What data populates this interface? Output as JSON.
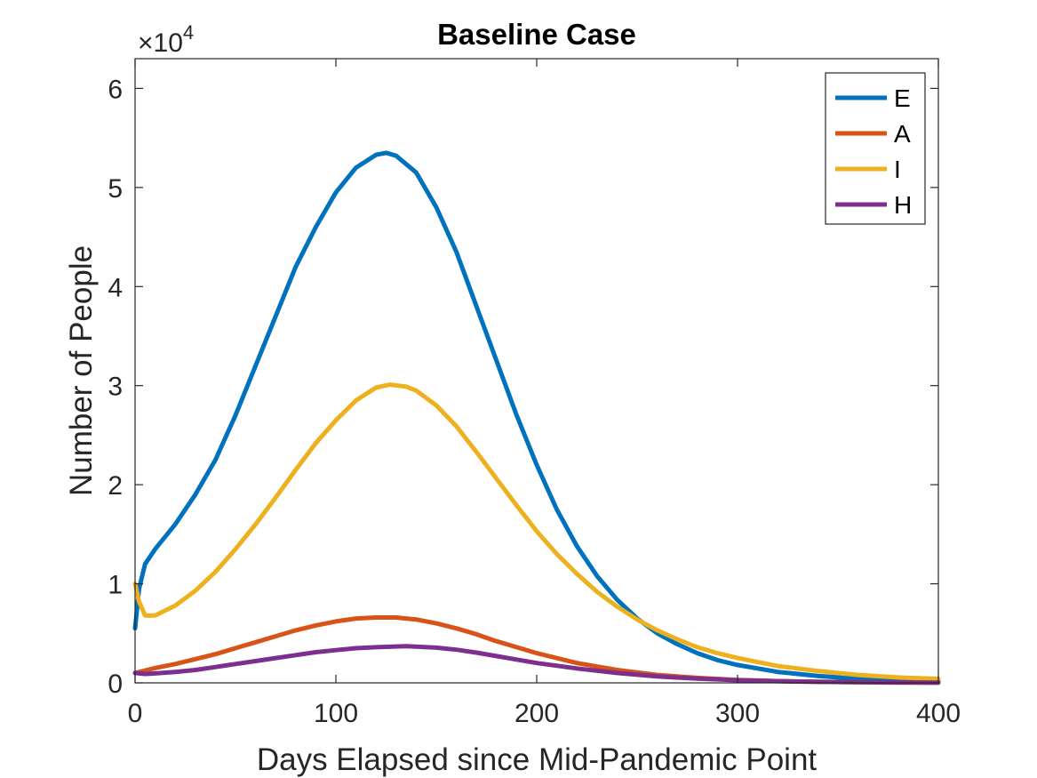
{
  "chart_data": {
    "type": "line",
    "title": "Baseline Case",
    "xlabel": "Days Elapsed since Mid-Pandemic Point",
    "ylabel": "Number of People",
    "y_multiplier": {
      "base": "×10",
      "exponent": "4"
    },
    "xlim": [
      0,
      400
    ],
    "ylim": [
      0,
      63000
    ],
    "x_ticks": [
      0,
      100,
      200,
      300,
      400
    ],
    "x_tick_labels": [
      "0",
      "100",
      "200",
      "300",
      "400"
    ],
    "y_ticks": [
      0,
      10000,
      20000,
      30000,
      40000,
      50000,
      60000
    ],
    "y_tick_labels": [
      "0",
      "1",
      "2",
      "3",
      "4",
      "5",
      "6"
    ],
    "grid": false,
    "box": true,
    "legend_position": "top-right",
    "series": [
      {
        "name": "E",
        "color": "#0072BD",
        "points": [
          [
            0,
            5500
          ],
          [
            2,
            9500
          ],
          [
            5,
            12000
          ],
          [
            10,
            13500
          ],
          [
            20,
            16000
          ],
          [
            30,
            19000
          ],
          [
            40,
            22500
          ],
          [
            50,
            27000
          ],
          [
            60,
            32000
          ],
          [
            70,
            37000
          ],
          [
            80,
            42000
          ],
          [
            90,
            46000
          ],
          [
            100,
            49500
          ],
          [
            110,
            52000
          ],
          [
            120,
            53300
          ],
          [
            125,
            53500
          ],
          [
            130,
            53200
          ],
          [
            140,
            51500
          ],
          [
            150,
            48000
          ],
          [
            160,
            43500
          ],
          [
            170,
            38000
          ],
          [
            180,
            32500
          ],
          [
            190,
            27000
          ],
          [
            200,
            22000
          ],
          [
            210,
            17500
          ],
          [
            220,
            13800
          ],
          [
            230,
            10800
          ],
          [
            240,
            8400
          ],
          [
            250,
            6500
          ],
          [
            260,
            5000
          ],
          [
            270,
            3900
          ],
          [
            280,
            3000
          ],
          [
            290,
            2300
          ],
          [
            300,
            1800
          ],
          [
            320,
            1100
          ],
          [
            340,
            700
          ],
          [
            360,
            400
          ],
          [
            380,
            250
          ],
          [
            400,
            150
          ]
        ]
      },
      {
        "name": "A",
        "color": "#D95319",
        "points": [
          [
            0,
            1000
          ],
          [
            10,
            1500
          ],
          [
            20,
            1900
          ],
          [
            30,
            2400
          ],
          [
            40,
            2900
          ],
          [
            50,
            3500
          ],
          [
            60,
            4100
          ],
          [
            70,
            4700
          ],
          [
            80,
            5300
          ],
          [
            90,
            5800
          ],
          [
            100,
            6200
          ],
          [
            110,
            6500
          ],
          [
            120,
            6600
          ],
          [
            130,
            6600
          ],
          [
            140,
            6400
          ],
          [
            150,
            6000
          ],
          [
            160,
            5500
          ],
          [
            170,
            4900
          ],
          [
            180,
            4200
          ],
          [
            190,
            3600
          ],
          [
            200,
            3000
          ],
          [
            220,
            2000
          ],
          [
            240,
            1300
          ],
          [
            260,
            800
          ],
          [
            280,
            500
          ],
          [
            300,
            300
          ],
          [
            320,
            180
          ],
          [
            340,
            100
          ],
          [
            360,
            60
          ],
          [
            380,
            30
          ],
          [
            400,
            20
          ]
        ]
      },
      {
        "name": "I",
        "color": "#EDB120",
        "points": [
          [
            0,
            10000
          ],
          [
            2,
            8200
          ],
          [
            5,
            6800
          ],
          [
            10,
            6800
          ],
          [
            20,
            7800
          ],
          [
            30,
            9300
          ],
          [
            40,
            11200
          ],
          [
            50,
            13500
          ],
          [
            60,
            16000
          ],
          [
            70,
            18700
          ],
          [
            80,
            21500
          ],
          [
            90,
            24200
          ],
          [
            100,
            26500
          ],
          [
            110,
            28500
          ],
          [
            120,
            29800
          ],
          [
            127,
            30100
          ],
          [
            135,
            29900
          ],
          [
            140,
            29500
          ],
          [
            150,
            28000
          ],
          [
            160,
            25900
          ],
          [
            170,
            23300
          ],
          [
            180,
            20600
          ],
          [
            190,
            17900
          ],
          [
            200,
            15300
          ],
          [
            210,
            13000
          ],
          [
            220,
            11000
          ],
          [
            230,
            9200
          ],
          [
            240,
            7700
          ],
          [
            250,
            6400
          ],
          [
            260,
            5300
          ],
          [
            270,
            4400
          ],
          [
            280,
            3600
          ],
          [
            290,
            3000
          ],
          [
            300,
            2500
          ],
          [
            320,
            1700
          ],
          [
            340,
            1200
          ],
          [
            360,
            800
          ],
          [
            380,
            550
          ],
          [
            400,
            400
          ]
        ]
      },
      {
        "name": "H",
        "color": "#7E2F8E",
        "points": [
          [
            0,
            1000
          ],
          [
            5,
            900
          ],
          [
            10,
            950
          ],
          [
            20,
            1100
          ],
          [
            30,
            1300
          ],
          [
            40,
            1600
          ],
          [
            50,
            1900
          ],
          [
            60,
            2200
          ],
          [
            70,
            2500
          ],
          [
            80,
            2800
          ],
          [
            90,
            3100
          ],
          [
            100,
            3300
          ],
          [
            110,
            3500
          ],
          [
            120,
            3600
          ],
          [
            135,
            3700
          ],
          [
            150,
            3550
          ],
          [
            160,
            3350
          ],
          [
            170,
            3050
          ],
          [
            180,
            2700
          ],
          [
            190,
            2350
          ],
          [
            200,
            2000
          ],
          [
            220,
            1450
          ],
          [
            240,
            1000
          ],
          [
            260,
            650
          ],
          [
            280,
            420
          ],
          [
            300,
            270
          ],
          [
            320,
            170
          ],
          [
            340,
            110
          ],
          [
            360,
            70
          ],
          [
            380,
            45
          ],
          [
            400,
            30
          ]
        ]
      }
    ]
  }
}
